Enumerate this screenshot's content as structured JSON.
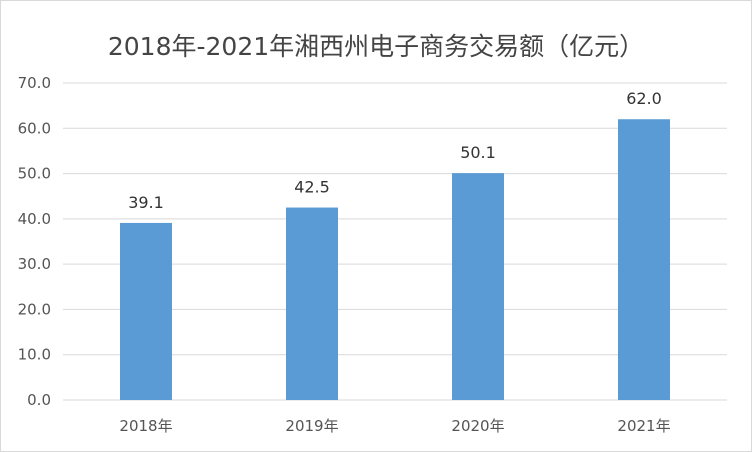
{
  "chart_data": {
    "type": "bar",
    "title": "2018年-2021年湘西州电子商务交易额（亿元）",
    "categories": [
      "2018年",
      "2019年",
      "2020年",
      "2021年"
    ],
    "values": [
      39.1,
      42.5,
      50.1,
      62.0
    ],
    "value_labels": [
      "39.1",
      "42.5",
      "50.1",
      "62.0"
    ],
    "y_ticks": [
      "0.0",
      "10.0",
      "20.0",
      "30.0",
      "40.0",
      "50.0",
      "60.0",
      "70.0"
    ],
    "ylim": [
      0,
      70
    ],
    "grid": true,
    "legend": "none",
    "bar_color": "#5b9bd5",
    "grid_color": "#d9d9d9"
  }
}
